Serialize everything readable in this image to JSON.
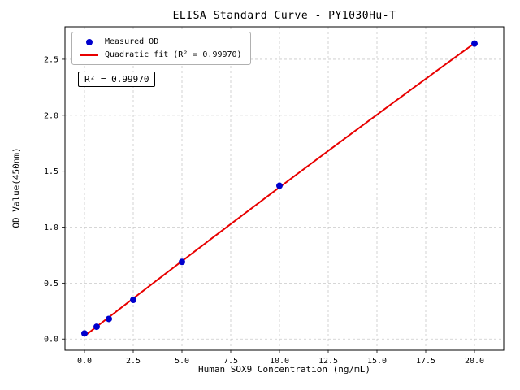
{
  "chart_data": {
    "type": "scatter",
    "title": "ELISA Standard Curve - PY1030Hu-T",
    "xlabel": "Human SOX9 Concentration (ng/mL)",
    "ylabel": "OD Value(450nm)",
    "annotation": "R² = 0.99970",
    "r_squared": "0.99970",
    "series": [
      {
        "name": "Measured OD",
        "type": "scatter",
        "color": "#0000cd",
        "x": [
          0,
          0.625,
          1.25,
          2.5,
          5,
          10,
          20
        ],
        "y": [
          0.05,
          0.11,
          0.18,
          0.35,
          0.69,
          1.37,
          2.64
        ]
      },
      {
        "name": "Quadratic fit (R² = 0.99970)",
        "type": "line",
        "color": "#e80000",
        "fit": "quadratic"
      }
    ],
    "xlim": [
      -1,
      21.5
    ],
    "ylim": [
      -0.1,
      2.79
    ],
    "xticks": [
      0,
      2.5,
      5,
      7.5,
      10,
      12.5,
      15,
      17.5,
      20
    ],
    "xtick_labels": [
      "0.0",
      "2.5",
      "5.0",
      "7.5",
      "10.0",
      "12.5",
      "15.0",
      "17.5",
      "20.0"
    ],
    "yticks": [
      0,
      0.5,
      1,
      1.5,
      2,
      2.5
    ],
    "ytick_labels": [
      "0.0",
      "0.5",
      "1.0",
      "1.5",
      "2.0",
      "2.5"
    ],
    "grid": true,
    "legend_position": "upper left"
  }
}
